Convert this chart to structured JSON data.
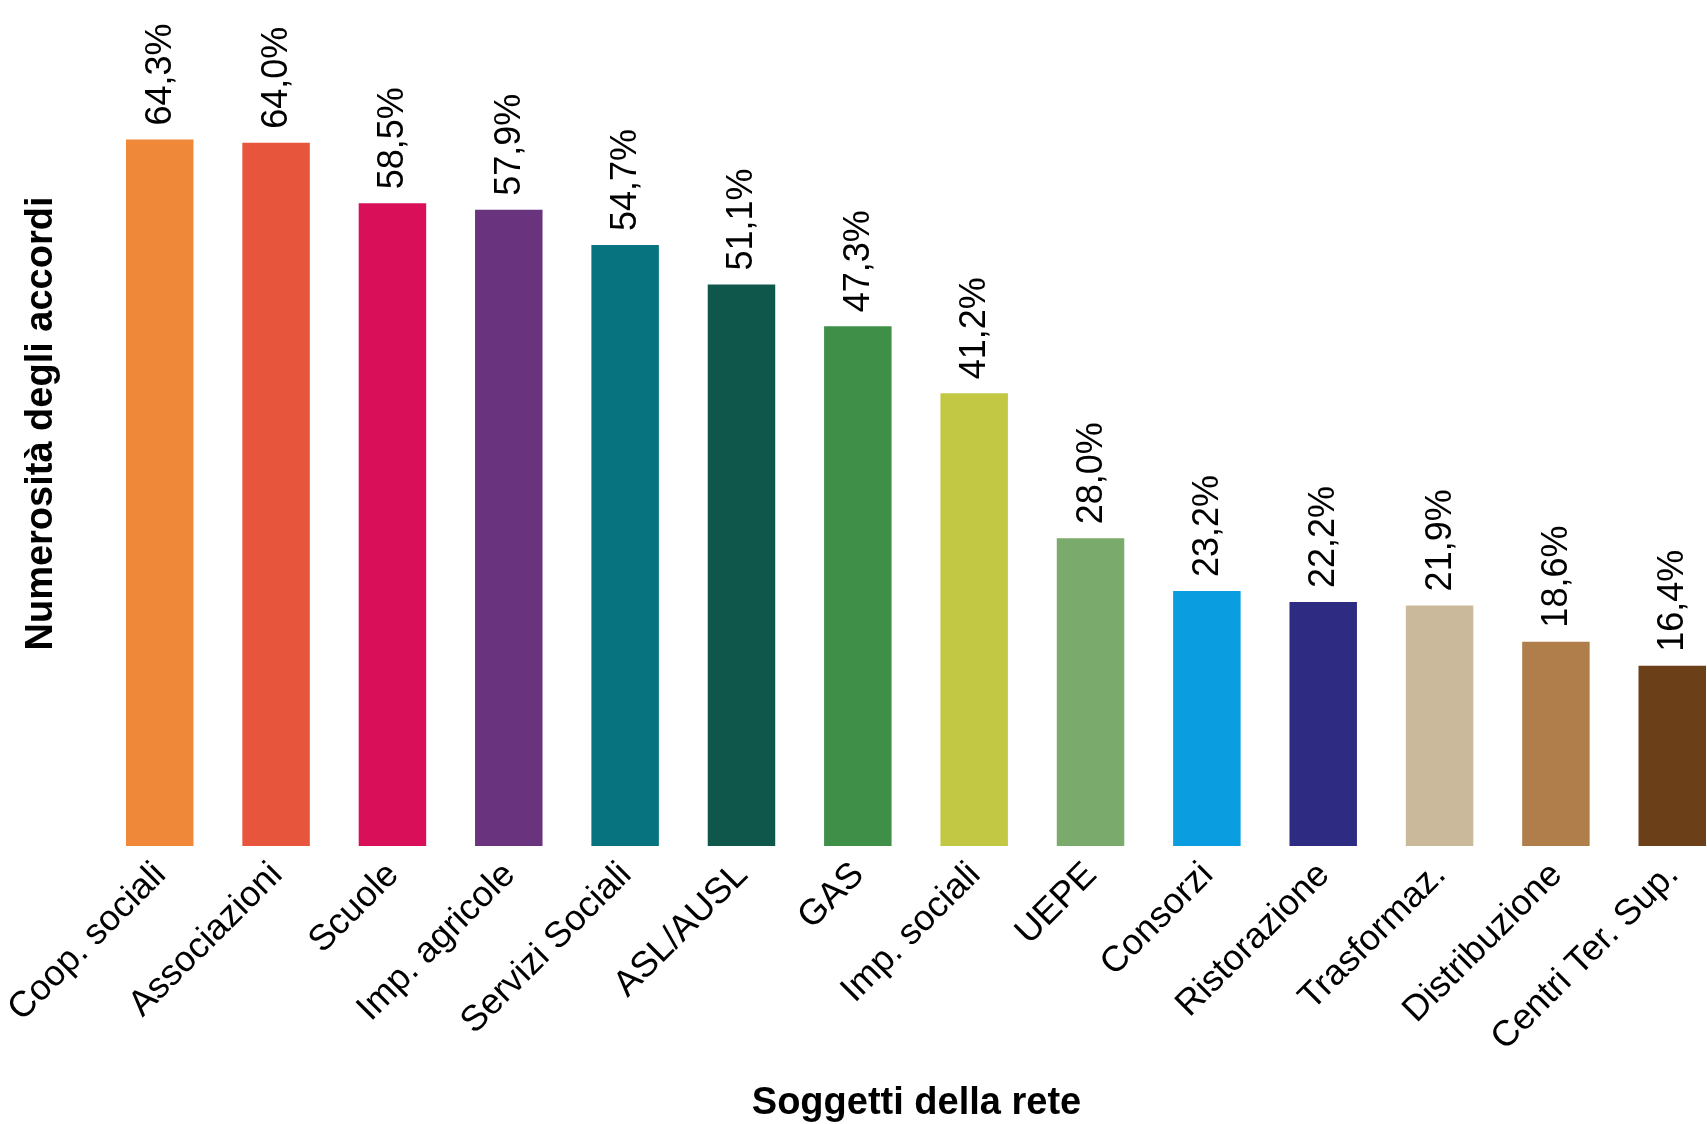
{
  "chart_data": {
    "type": "bar",
    "xlabel": "Soggetti della rete",
    "ylabel": "Numerosità degli accordi",
    "categories": [
      "Coop. sociali",
      "Associazioni",
      "Scuole",
      "Imp. agricole",
      "Servizi Sociali",
      "ASL/AUSL",
      "GAS",
      "Imp. sociali",
      "UEPE",
      "Consorzi",
      "Ristorazione",
      "Trasformaz.",
      "Distribuzione",
      "Centri Ter. Sup."
    ],
    "values": [
      64.3,
      64.0,
      58.5,
      57.9,
      54.7,
      51.1,
      47.3,
      41.2,
      28.0,
      23.2,
      22.2,
      21.9,
      18.6,
      16.4
    ],
    "colors": [
      "#f0883a",
      "#e8553d",
      "#d90f5a",
      "#6a337e",
      "#07737e",
      "#0f574a",
      "#3f8f48",
      "#c2c844",
      "#7aaa6c",
      "#0a9de0",
      "#2e2b82",
      "#cbb99b",
      "#b07e4b",
      "#6b3f17"
    ],
    "value_labels": [
      "64,3%",
      "64,0%",
      "58,5%",
      "57,9%",
      "54,7%",
      "51,1%",
      "47,3%",
      "41,2%",
      "28,0%",
      "23,2%",
      "22,2%",
      "21,9%",
      "18,6%",
      "16,4%"
    ],
    "ylim": [
      0,
      77
    ],
    "tick_labels": "x"
  }
}
